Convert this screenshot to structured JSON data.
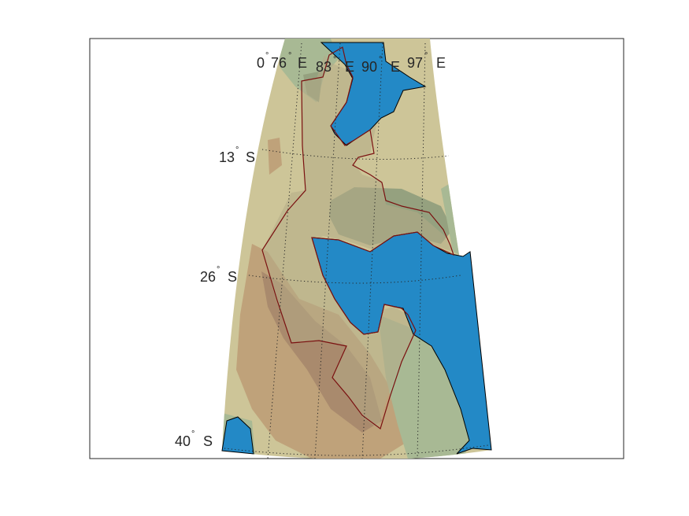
{
  "map": {
    "projection": "conic",
    "colors": {
      "background": "#ffffff",
      "axes_frame": "#262626",
      "land_base": "#cdc598",
      "land_green": "#a8b994",
      "land_green_dark": "#95a17f",
      "land_tan": "#bfa27a",
      "land_brown": "#a98a6d",
      "land_olive": "#b5ab86",
      "water": "#2389c6",
      "region_outline": "#7a1010",
      "graticule": "#262626"
    },
    "meridian_labels": [
      {
        "value": "0",
        "deg": "°",
        "suffix": ""
      },
      {
        "value": "76",
        "deg": "°",
        "suffix": "E"
      },
      {
        "value": "83",
        "deg": "°",
        "suffix": "E"
      },
      {
        "value": "90",
        "deg": "°",
        "suffix": "E"
      },
      {
        "value": "97",
        "deg": "°",
        "suffix": "E"
      }
    ],
    "parallel_labels": [
      {
        "value": "13",
        "deg": "°",
        "suffix": "S"
      },
      {
        "value": "26",
        "deg": "°",
        "suffix": "S"
      },
      {
        "value": "40",
        "deg": "°",
        "suffix": "S"
      }
    ]
  }
}
